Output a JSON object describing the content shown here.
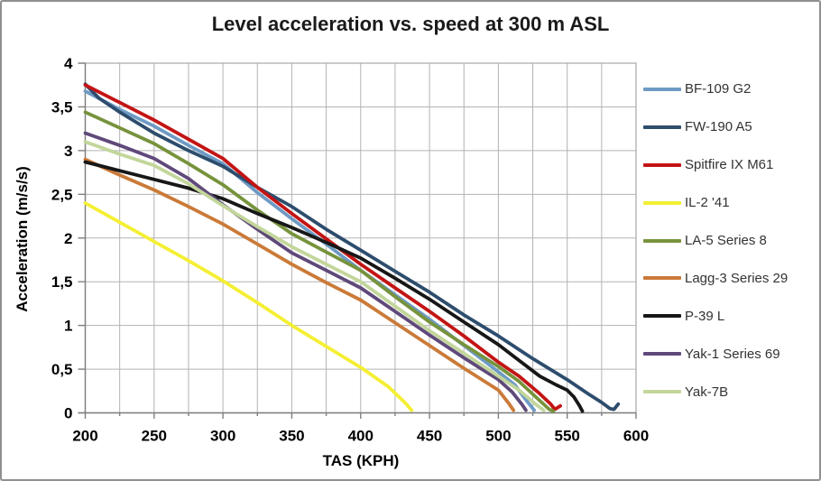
{
  "frame": {
    "border_color": "#8f8f8f",
    "background": "#ffffff"
  },
  "chart_data": {
    "type": "line",
    "title": "Level acceleration vs. speed at 300 m ASL",
    "xlabel": "TAS (KPH)",
    "ylabel": "Acceleration (m/s/s)",
    "xlim": [
      200,
      600
    ],
    "ylim": [
      0,
      4
    ],
    "x_grid_step": 25,
    "x_label_step": 50,
    "y_grid_step": 0.5,
    "decimal_separator": ",",
    "x_ticks": [
      200,
      250,
      300,
      350,
      400,
      450,
      500,
      550,
      600
    ],
    "x_tick_labels": [
      "200",
      "250",
      "300",
      "350",
      "400",
      "450",
      "500",
      "550",
      "600"
    ],
    "y_ticks": [
      0,
      0.5,
      1,
      1.5,
      2,
      2.5,
      3,
      3.5,
      4
    ],
    "y_tick_labels": [
      "0",
      "0,5",
      "1",
      "1,5",
      "2",
      "2,5",
      "3",
      "3,5",
      "4"
    ],
    "grid_on": true,
    "grid_color": "#b3b3b3",
    "axis_color": "#7f7f7f",
    "plot_border_color": "#a6a6a6",
    "legend_position": "right",
    "series": [
      {
        "name": "BF-109 G2",
        "color": "#6e9ac4",
        "points": [
          [
            200,
            3.68
          ],
          [
            225,
            3.47
          ],
          [
            250,
            3.28
          ],
          [
            275,
            3.06
          ],
          [
            300,
            2.85
          ],
          [
            325,
            2.52
          ],
          [
            350,
            2.22
          ],
          [
            375,
            1.93
          ],
          [
            400,
            1.63
          ],
          [
            425,
            1.35
          ],
          [
            450,
            1.07
          ],
          [
            475,
            0.77
          ],
          [
            500,
            0.47
          ],
          [
            512,
            0.32
          ],
          [
            520,
            0.15
          ],
          [
            526,
            0.03
          ]
        ]
      },
      {
        "name": "FW-190 A5",
        "color": "#2d4d6d",
        "points": [
          [
            200,
            3.76
          ],
          [
            210,
            3.6
          ],
          [
            225,
            3.44
          ],
          [
            250,
            3.2
          ],
          [
            275,
            3.0
          ],
          [
            300,
            2.82
          ],
          [
            325,
            2.58
          ],
          [
            350,
            2.36
          ],
          [
            375,
            2.1
          ],
          [
            400,
            1.86
          ],
          [
            425,
            1.62
          ],
          [
            450,
            1.38
          ],
          [
            475,
            1.12
          ],
          [
            500,
            0.88
          ],
          [
            525,
            0.62
          ],
          [
            550,
            0.38
          ],
          [
            565,
            0.22
          ],
          [
            575,
            0.12
          ],
          [
            581,
            0.05
          ],
          [
            584,
            0.04
          ],
          [
            587,
            0.1
          ]
        ]
      },
      {
        "name": "Spitfire IX M61",
        "color": "#c31414",
        "points": [
          [
            200,
            3.75
          ],
          [
            225,
            3.55
          ],
          [
            250,
            3.35
          ],
          [
            275,
            3.13
          ],
          [
            300,
            2.91
          ],
          [
            325,
            2.58
          ],
          [
            350,
            2.28
          ],
          [
            375,
            1.99
          ],
          [
            400,
            1.7
          ],
          [
            425,
            1.43
          ],
          [
            450,
            1.16
          ],
          [
            475,
            0.88
          ],
          [
            500,
            0.58
          ],
          [
            515,
            0.42
          ],
          [
            530,
            0.22
          ],
          [
            538,
            0.1
          ],
          [
            541,
            0.04
          ],
          [
            545,
            0.08
          ]
        ]
      },
      {
        "name": "IL-2 '41",
        "color": "#f4ef32",
        "points": [
          [
            200,
            2.4
          ],
          [
            225,
            2.18
          ],
          [
            250,
            1.96
          ],
          [
            275,
            1.74
          ],
          [
            300,
            1.51
          ],
          [
            325,
            1.26
          ],
          [
            350,
            1.0
          ],
          [
            375,
            0.76
          ],
          [
            400,
            0.52
          ],
          [
            420,
            0.3
          ],
          [
            432,
            0.12
          ],
          [
            437,
            0.03
          ]
        ]
      },
      {
        "name": "LA-5 Series 8",
        "color": "#77933c",
        "points": [
          [
            200,
            3.44
          ],
          [
            225,
            3.26
          ],
          [
            250,
            3.08
          ],
          [
            275,
            2.85
          ],
          [
            300,
            2.61
          ],
          [
            325,
            2.32
          ],
          [
            350,
            2.05
          ],
          [
            375,
            1.84
          ],
          [
            400,
            1.63
          ],
          [
            425,
            1.33
          ],
          [
            450,
            1.04
          ],
          [
            475,
            0.78
          ],
          [
            500,
            0.53
          ],
          [
            515,
            0.36
          ],
          [
            530,
            0.14
          ],
          [
            537,
            0.04
          ],
          [
            540,
            0.02
          ]
        ]
      },
      {
        "name": "Lagg-3 Series 29",
        "color": "#cb7a38",
        "points": [
          [
            200,
            2.9
          ],
          [
            225,
            2.72
          ],
          [
            250,
            2.55
          ],
          [
            275,
            2.36
          ],
          [
            300,
            2.16
          ],
          [
            325,
            1.93
          ],
          [
            350,
            1.7
          ],
          [
            375,
            1.49
          ],
          [
            400,
            1.29
          ],
          [
            425,
            1.03
          ],
          [
            450,
            0.77
          ],
          [
            475,
            0.51
          ],
          [
            500,
            0.26
          ],
          [
            507,
            0.12
          ],
          [
            511,
            0.03
          ]
        ]
      },
      {
        "name": "P-39 L",
        "color": "#171717",
        "points": [
          [
            200,
            2.87
          ],
          [
            225,
            2.77
          ],
          [
            250,
            2.67
          ],
          [
            275,
            2.57
          ],
          [
            300,
            2.45
          ],
          [
            325,
            2.28
          ],
          [
            350,
            2.12
          ],
          [
            375,
            1.95
          ],
          [
            400,
            1.77
          ],
          [
            425,
            1.54
          ],
          [
            450,
            1.3
          ],
          [
            475,
            1.04
          ],
          [
            500,
            0.78
          ],
          [
            515,
            0.6
          ],
          [
            530,
            0.42
          ],
          [
            542,
            0.32
          ],
          [
            550,
            0.26
          ],
          [
            555,
            0.18
          ],
          [
            559,
            0.08
          ],
          [
            561,
            0.02
          ]
        ]
      },
      {
        "name": "Yak-1 Series 69",
        "color": "#5f497a",
        "points": [
          [
            200,
            3.2
          ],
          [
            225,
            3.06
          ],
          [
            250,
            2.91
          ],
          [
            275,
            2.68
          ],
          [
            300,
            2.38
          ],
          [
            325,
            2.1
          ],
          [
            350,
            1.83
          ],
          [
            375,
            1.63
          ],
          [
            400,
            1.43
          ],
          [
            425,
            1.16
          ],
          [
            450,
            0.89
          ],
          [
            475,
            0.63
          ],
          [
            500,
            0.38
          ],
          [
            510,
            0.24
          ],
          [
            517,
            0.1
          ],
          [
            520,
            0.03
          ]
        ]
      },
      {
        "name": "Yak-7B",
        "color": "#c3d69b",
        "points": [
          [
            200,
            3.1
          ],
          [
            225,
            2.96
          ],
          [
            250,
            2.83
          ],
          [
            275,
            2.62
          ],
          [
            300,
            2.37
          ],
          [
            325,
            2.13
          ],
          [
            350,
            1.9
          ],
          [
            375,
            1.7
          ],
          [
            400,
            1.5
          ],
          [
            425,
            1.22
          ],
          [
            450,
            0.94
          ],
          [
            475,
            0.68
          ],
          [
            500,
            0.42
          ],
          [
            515,
            0.26
          ],
          [
            527,
            0.1
          ],
          [
            533,
            0.03
          ]
        ]
      }
    ]
  }
}
